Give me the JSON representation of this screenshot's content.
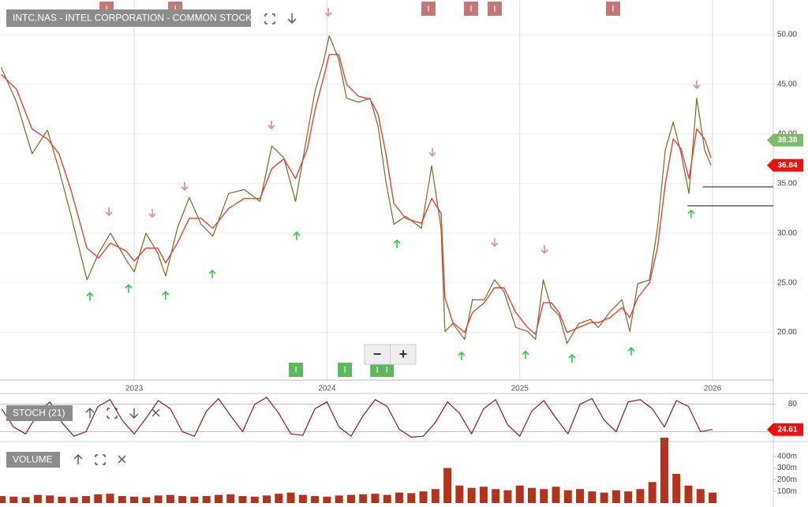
{
  "chart_data": [
    {
      "type": "line",
      "title": "INTC.NAS - INTEL CORPORATION - COMMON STOCK",
      "x": [
        2022.31,
        2022.39,
        2022.47,
        2022.55,
        2022.61,
        2022.67,
        2022.755,
        2022.816,
        2022.877,
        2022.959,
        2023.0,
        2023.061,
        2023.122,
        2023.163,
        2023.224,
        2023.286,
        2023.347,
        2023.408,
        2023.49,
        2023.571,
        2023.653,
        2023.714,
        2023.776,
        2023.837,
        2023.898,
        2023.939,
        2023.98,
        2024.012,
        2024.061,
        2024.102,
        2024.163,
        2024.224,
        2024.265,
        2024.306,
        2024.347,
        2024.408,
        2024.49,
        2024.543,
        2024.592,
        2024.612,
        2024.653,
        2024.714,
        2024.755,
        2024.816,
        2024.869,
        2024.918,
        2024.98,
        2025.041,
        2025.082,
        2025.122,
        2025.163,
        2025.204,
        2025.245,
        2025.306,
        2025.367,
        2025.408,
        2025.469,
        2025.53,
        2025.571,
        2025.612,
        2025.673,
        2025.714,
        2025.755,
        2025.796,
        2025.837,
        2025.878,
        2025.918,
        2025.959,
        2025.992
      ],
      "series": [
        {
          "name": "Price",
          "color": "#7a6a1e",
          "values": [
            46.7,
            43.2,
            38,
            40.4,
            36.4,
            32,
            25.3,
            28,
            30,
            27.3,
            26.1,
            30,
            28,
            25.7,
            30.5,
            33.6,
            30.9,
            29.7,
            34,
            34.4,
            33.2,
            38.8,
            37.6,
            33.2,
            40,
            44.4,
            47.1,
            49.9,
            47.5,
            43.6,
            43.2,
            43.6,
            40.8,
            35.2,
            30.9,
            31.7,
            30.5,
            36.8,
            30.5,
            20.1,
            20.9,
            19.3,
            23.3,
            23.3,
            25.3,
            24.1,
            20.5,
            20.1,
            19.3,
            25.3,
            22.5,
            21.7,
            18.9,
            20.9,
            21.3,
            20.5,
            22.1,
            23.3,
            20.1,
            24.9,
            25.3,
            30.5,
            38.4,
            41.2,
            38,
            34,
            43.6,
            38.4,
            36.84
          ]
        },
        {
          "name": "Moving average",
          "color": "#e8403a",
          "values": [
            46,
            44.5,
            40.5,
            39.5,
            38,
            34.5,
            28.5,
            27.5,
            29,
            28.2,
            27.2,
            28.5,
            28.5,
            27,
            29,
            31.5,
            31.5,
            30.5,
            32.5,
            33.5,
            33.5,
            36.5,
            37.5,
            35.5,
            38.5,
            42.5,
            45.5,
            48,
            48,
            45,
            43.8,
            43.5,
            42,
            38,
            33,
            31.5,
            31,
            33.5,
            32,
            23.5,
            21,
            20,
            22,
            23,
            24.5,
            24.5,
            22,
            20.5,
            19.8,
            23,
            23,
            22,
            20,
            20.5,
            21,
            21,
            21.5,
            22.5,
            21.5,
            23.5,
            25,
            28.5,
            35,
            39.5,
            38.5,
            35.5,
            40.5,
            39.5,
            37.6
          ]
        }
      ],
      "reference_price": {
        "value": 39.38,
        "color": "#7dbb6a"
      },
      "last_price_color": "#e8130c",
      "buy_signals": {
        "color": "#2ecc40",
        "x": [
          2022.771,
          2022.971,
          2023.163,
          2023.405,
          2023.843,
          2024.363,
          2024.698,
          2025.03,
          2025.271,
          2025.578,
          2025.889
        ],
        "values": [
          23.6,
          24.4,
          23.7,
          25.85,
          29.7,
          28.9,
          17.6,
          17.7,
          17.35,
          18.05,
          31.9
        ]
      },
      "sell_signals": {
        "color": "#e88a8a",
        "x": [
          2022.869,
          2023.094,
          2023.262,
          2023.712,
          2024.007,
          2024.547,
          2024.87,
          2025.128,
          2025.918
        ],
        "values": [
          32.2,
          32.05,
          34.75,
          40.95,
          52.3,
          38.2,
          29.1,
          28.4,
          45.0
        ]
      },
      "events_top": {
        "label": "I",
        "color": "#c47777",
        "x": [
          2022.857,
          2023.213,
          2024.526,
          2024.747,
          2024.87,
          2025.484
        ]
      },
      "events_bottom": {
        "label": "I",
        "color": "#5cb85c",
        "x": [
          2023.839,
          2024.093,
          2024.261,
          2024.31
        ]
      },
      "support_lines": [
        {
          "start": 2025.95,
          "value": 34.67
        },
        {
          "start": 2025.87,
          "value": 32.76
        }
      ],
      "xlim": [
        2022.304,
        2026.315
      ],
      "xticks": [
        2023,
        2024,
        2025,
        2026
      ],
      "ylim": [
        15.2,
        53.5
      ],
      "yticks": [
        {
          "value": 20,
          "label": "20.00"
        },
        {
          "value": 25,
          "label": "25.00"
        },
        {
          "value": 30,
          "label": "30.00"
        },
        {
          "value": 35,
          "label": "35.00"
        },
        {
          "value": 40,
          "label": "40.00"
        },
        {
          "value": 45,
          "label": "45.00"
        },
        {
          "value": 50,
          "label": "50.00"
        }
      ],
      "grid": true
    },
    {
      "type": "line",
      "title": "STOCH (21)",
      "x": [
        2022.3125,
        2022.375,
        2022.4375,
        2022.5,
        2022.5625,
        2022.625,
        2022.6875,
        2022.75,
        2022.8125,
        2022.875,
        2022.9375,
        2023.0,
        2023.0625,
        2023.125,
        2023.1875,
        2023.25,
        2023.3125,
        2023.375,
        2023.4375,
        2023.5,
        2023.5625,
        2023.625,
        2023.6875,
        2023.75,
        2023.8125,
        2023.875,
        2023.9375,
        2024.0,
        2024.0625,
        2024.125,
        2024.1875,
        2024.25,
        2024.3125,
        2024.375,
        2024.4375,
        2024.5,
        2024.5625,
        2024.625,
        2024.6875,
        2024.75,
        2024.8125,
        2024.875,
        2024.9375,
        2025.0,
        2025.0625,
        2025.125,
        2025.1875,
        2025.25,
        2025.3125,
        2025.375,
        2025.4375,
        2025.5,
        2025.5625,
        2025.625,
        2025.6875,
        2025.75,
        2025.8125,
        2025.875,
        2025.9375,
        2026.0
      ],
      "series": [
        {
          "name": "%K",
          "color": "#8b1a1a",
          "values": [
            70,
            30,
            15,
            60,
            85,
            40,
            10,
            20,
            75,
            90,
            45,
            15,
            50,
            88,
            70,
            20,
            10,
            65,
            92,
            55,
            20,
            80,
            95,
            60,
            15,
            12,
            70,
            85,
            30,
            10,
            55,
            90,
            75,
            25,
            8,
            10,
            40,
            85,
            60,
            15,
            70,
            90,
            35,
            10,
            65,
            88,
            50,
            15,
            80,
            92,
            45,
            20,
            85,
            90,
            70,
            30,
            88,
            75,
            20,
            24.61
          ]
        }
      ],
      "last_value_color": "#e8130c",
      "reference_lines": [
        20,
        80
      ],
      "xlim": [
        2022.304,
        2026.315
      ],
      "ylim": [
        0,
        100
      ],
      "yticks": [
        80
      ]
    },
    {
      "type": "bar",
      "title": "VOLUME",
      "color": "#b5321c",
      "x": [
        2022.3125,
        2022.375,
        2022.4375,
        2022.5,
        2022.5625,
        2022.625,
        2022.6875,
        2022.75,
        2022.8125,
        2022.875,
        2022.9375,
        2023.0,
        2023.0625,
        2023.125,
        2023.1875,
        2023.25,
        2023.3125,
        2023.375,
        2023.4375,
        2023.5,
        2023.5625,
        2023.625,
        2023.6875,
        2023.75,
        2023.8125,
        2023.875,
        2023.9375,
        2024.0,
        2024.0625,
        2024.125,
        2024.1875,
        2024.25,
        2024.3125,
        2024.375,
        2024.4375,
        2024.5,
        2024.5625,
        2024.625,
        2024.6875,
        2024.75,
        2024.8125,
        2024.875,
        2024.9375,
        2025.0,
        2025.0625,
        2025.125,
        2025.1875,
        2025.25,
        2025.3125,
        2025.375,
        2025.4375,
        2025.5,
        2025.5625,
        2025.625,
        2025.6875,
        2025.75,
        2025.8125,
        2025.875,
        2025.9375,
        2026.0
      ],
      "values": [
        60000000,
        55000000,
        50000000,
        70000000,
        65000000,
        55000000,
        50000000,
        60000000,
        75000000,
        80000000,
        60000000,
        55000000,
        50000000,
        65000000,
        70000000,
        60000000,
        55000000,
        60000000,
        70000000,
        75000000,
        60000000,
        55000000,
        65000000,
        80000000,
        90000000,
        70000000,
        60000000,
        55000000,
        65000000,
        70000000,
        75000000,
        80000000,
        70000000,
        90000000,
        85000000,
        100000000,
        120000000,
        300000000,
        150000000,
        130000000,
        140000000,
        120000000,
        110000000,
        150000000,
        130000000,
        120000000,
        140000000,
        110000000,
        120000000,
        100000000,
        90000000,
        110000000,
        100000000,
        120000000,
        180000000,
        560000000,
        250000000,
        150000000,
        120000000,
        90000000
      ],
      "xlim": [
        2022.304,
        2026.315
      ],
      "ylim": [
        0,
        520000000
      ],
      "yticks": [
        {
          "value": 100000000,
          "label": "100m"
        },
        {
          "value": 200000000,
          "label": "200m"
        },
        {
          "value": 300000000,
          "label": "300m"
        },
        {
          "value": 400000000,
          "label": "400m"
        }
      ]
    }
  ],
  "ui": {
    "zoom_out": "−",
    "zoom_in": "+"
  }
}
